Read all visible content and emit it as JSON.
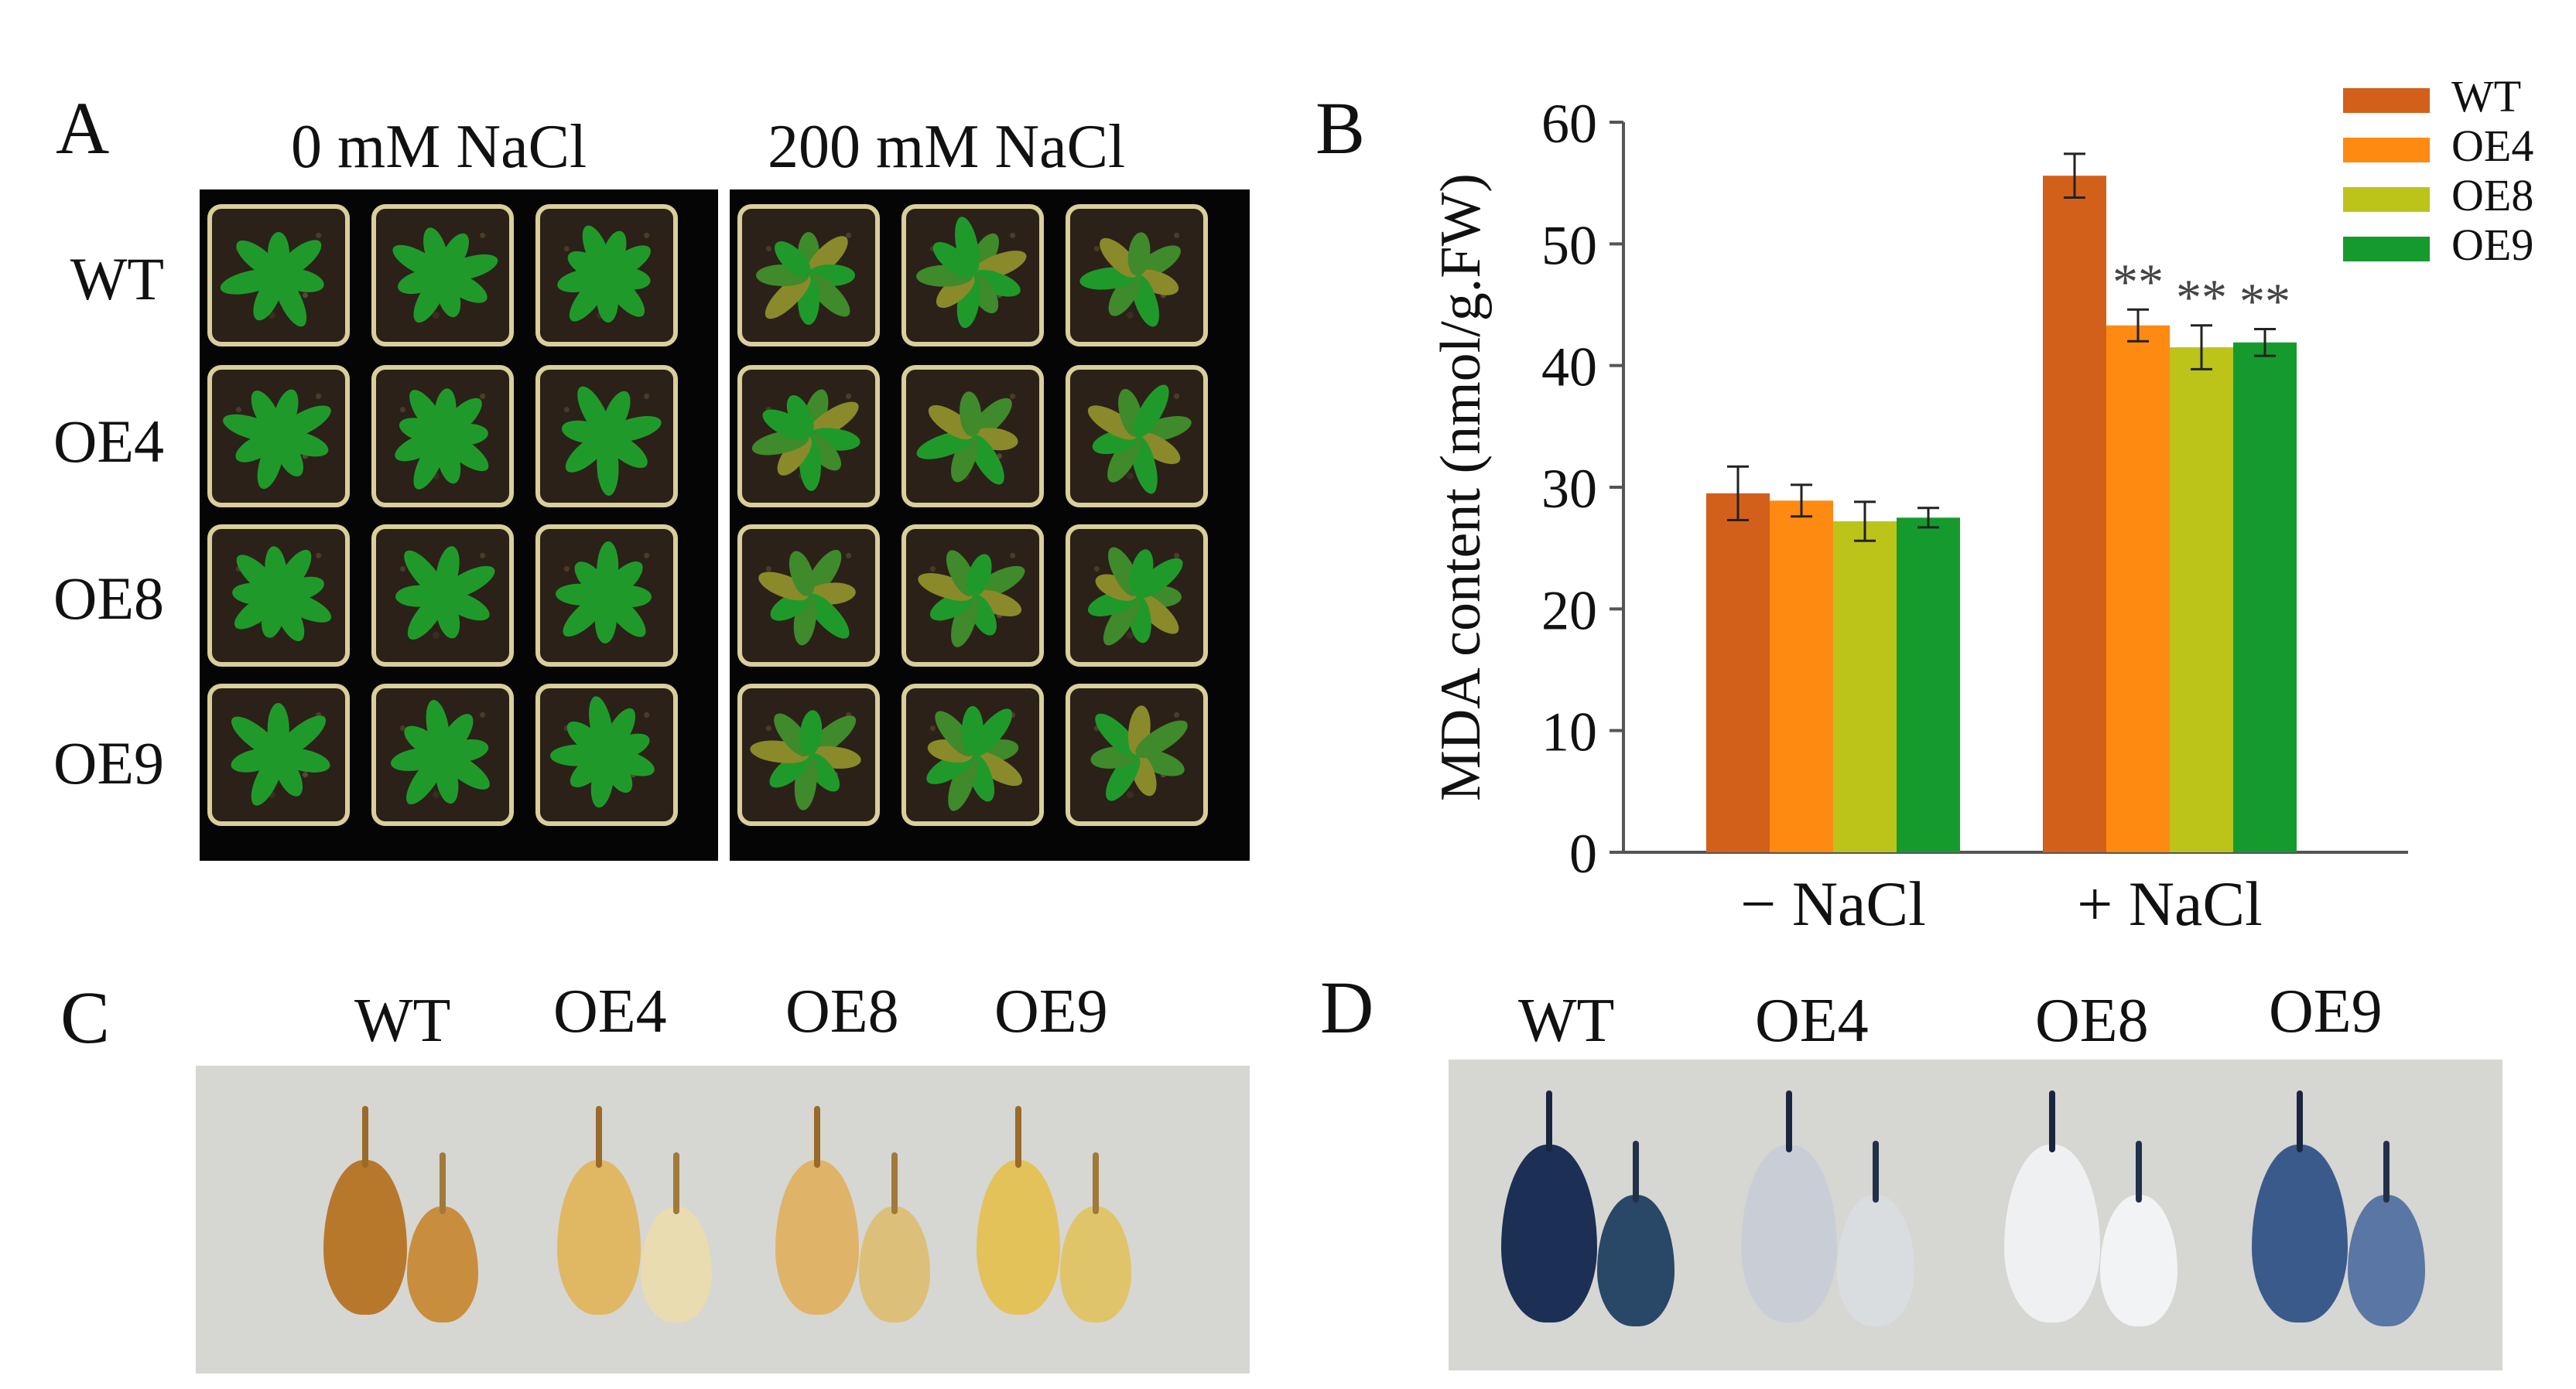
{
  "panel_labels": {
    "a": "A",
    "b": "B",
    "c": "C",
    "d": "D"
  },
  "panel_a": {
    "conditions": [
      "0 mM NaCl",
      "200 mM NaCl"
    ],
    "rows": [
      "WT",
      "OE4",
      "OE8",
      "OE9"
    ]
  },
  "panel_c": {
    "labels": [
      "WT",
      "OE4",
      "OE8",
      "OE9"
    ]
  },
  "panel_d": {
    "labels": [
      "WT",
      "OE4",
      "OE8",
      "OE9"
    ]
  },
  "colors": {
    "WT": "#d2601a",
    "OE4": "#ff8a12",
    "OE8": "#bcc419",
    "OE9": "#159b2d"
  },
  "chart_data": {
    "type": "bar",
    "categories": [
      "− NaCl",
      "+ NaCl"
    ],
    "series": [
      {
        "name": "WT",
        "values": [
          29.5,
          55.6
        ],
        "errors": [
          2.2,
          1.8
        ],
        "sig": [
          "",
          ""
        ]
      },
      {
        "name": "OE4",
        "values": [
          28.9,
          43.3
        ],
        "errors": [
          1.3,
          1.3
        ],
        "sig": [
          "",
          "**"
        ]
      },
      {
        "name": "OE8",
        "values": [
          27.2,
          41.5
        ],
        "errors": [
          1.6,
          1.8
        ],
        "sig": [
          "",
          "**"
        ]
      },
      {
        "name": "OE9",
        "values": [
          27.5,
          41.9
        ],
        "errors": [
          0.8,
          1.1
        ],
        "sig": [
          "",
          "**"
        ]
      }
    ],
    "title": "",
    "xlabel": "",
    "ylabel": "MDA content (nmol/g.FW)",
    "ylim": [
      0,
      60
    ],
    "yticks": [
      0,
      10,
      20,
      30,
      40,
      50,
      60
    ],
    "legend_position": "top-right",
    "grid": false
  }
}
